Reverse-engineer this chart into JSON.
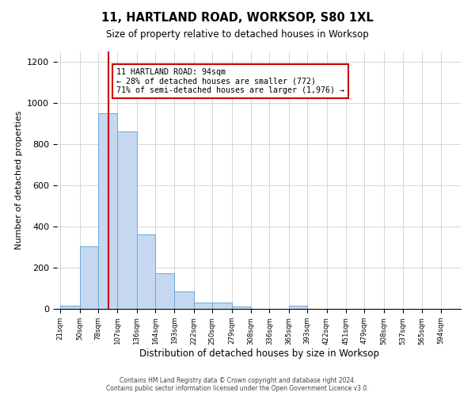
{
  "title": "11, HARTLAND ROAD, WORKSOP, S80 1XL",
  "subtitle": "Size of property relative to detached houses in Worksop",
  "xlabel": "Distribution of detached houses by size in Worksop",
  "ylabel": "Number of detached properties",
  "footer_line1": "Contains HM Land Registry data © Crown copyright and database right 2024.",
  "footer_line2": "Contains public sector information licensed under the Open Government Licence v3.0.",
  "annotation_line1": "11 HARTLAND ROAD: 94sqm",
  "annotation_line2": "← 28% of detached houses are smaller (772)",
  "annotation_line3": "71% of semi-detached houses are larger (1,976) →",
  "property_size": 94,
  "bin_edges": [
    21,
    50,
    78,
    107,
    136,
    164,
    193,
    222,
    250,
    279,
    308,
    336,
    365,
    393,
    422,
    451,
    479,
    508,
    537,
    565,
    594
  ],
  "bar_values": [
    15,
    305,
    950,
    860,
    360,
    175,
    85,
    30,
    30,
    10,
    0,
    0,
    15,
    0,
    0,
    0,
    0,
    0,
    0,
    0
  ],
  "bar_color": "#c5d8f0",
  "bar_edge_color": "#6fa8d6",
  "red_line_color": "#cc0000",
  "annotation_box_color": "#cc0000",
  "background_color": "#ffffff",
  "grid_color": "#d0d0d0",
  "ylim": [
    0,
    1250
  ],
  "yticks": [
    0,
    200,
    400,
    600,
    800,
    1000,
    1200
  ]
}
